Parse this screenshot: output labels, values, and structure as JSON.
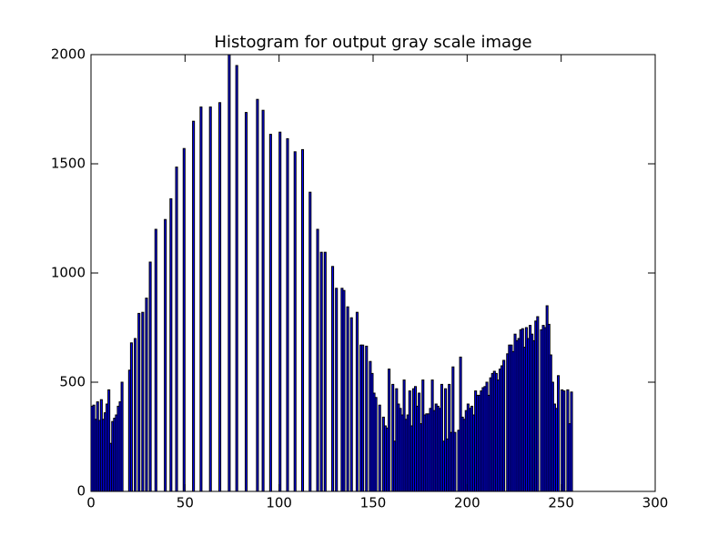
{
  "chart_data": {
    "type": "histogram",
    "title": "Histogram for output gray scale image",
    "bins": [
      0,
      1,
      2,
      3,
      4,
      5,
      6,
      7,
      8,
      9,
      10,
      11,
      12,
      13,
      14,
      15,
      16,
      17,
      18,
      19,
      20,
      21,
      22,
      23,
      24,
      25,
      26,
      27,
      28,
      29,
      30,
      31,
      32,
      33,
      34,
      35,
      36,
      37,
      38,
      39,
      40,
      41,
      42,
      43,
      44,
      45,
      46,
      47,
      48,
      49,
      50,
      51,
      52,
      53,
      54,
      55,
      56,
      57,
      58,
      59,
      60,
      61,
      62,
      63,
      64,
      65,
      66,
      67,
      68,
      69,
      70,
      71,
      72,
      73,
      74,
      75,
      76,
      77,
      78,
      79,
      80,
      81,
      82,
      83,
      84,
      85,
      86,
      87,
      88,
      89,
      90,
      91,
      92,
      93,
      94,
      95,
      96,
      97,
      98,
      99,
      100,
      101,
      102,
      103,
      104,
      105,
      106,
      107,
      108,
      109,
      110,
      111,
      112,
      113,
      114,
      115,
      116,
      117,
      118,
      119,
      120,
      121,
      122,
      123,
      124,
      125,
      126,
      127,
      128,
      129,
      130,
      131,
      132,
      133,
      134,
      135,
      136,
      137,
      138,
      139,
      140,
      141,
      142,
      143,
      144,
      145,
      146,
      147,
      148,
      149,
      150,
      151,
      152,
      153,
      154,
      155,
      156,
      157,
      158,
      159,
      160,
      161,
      162,
      163,
      164,
      165,
      166,
      167,
      168,
      169,
      170,
      171,
      172,
      173,
      174,
      175,
      176,
      177,
      178,
      179,
      180,
      181,
      182,
      183,
      184,
      185,
      186,
      187,
      188,
      189,
      190,
      191,
      192,
      193,
      194,
      195,
      196,
      197,
      198,
      199,
      200,
      201,
      202,
      203,
      204,
      205,
      206,
      207,
      208,
      209,
      210,
      211,
      212,
      213,
      214,
      215,
      216,
      217,
      218,
      219,
      220,
      221,
      222,
      223,
      224,
      225,
      226,
      227,
      228,
      229,
      230,
      231,
      232,
      233,
      234,
      235,
      236,
      237,
      238,
      239,
      240,
      241,
      242,
      243,
      244,
      245,
      246,
      247,
      248,
      249,
      250,
      251,
      252,
      253,
      254,
      255,
      256
    ],
    "values": [
      390,
      395,
      330,
      410,
      325,
      420,
      330,
      360,
      400,
      465,
      220,
      320,
      335,
      350,
      390,
      410,
      500,
      0,
      0,
      0,
      555,
      680,
      0,
      700,
      0,
      815,
      0,
      820,
      0,
      885,
      0,
      1050,
      0,
      0,
      1200,
      0,
      0,
      0,
      0,
      1245,
      0,
      0,
      1340,
      0,
      0,
      1485,
      0,
      0,
      0,
      1570,
      0,
      0,
      0,
      0,
      1695,
      0,
      0,
      0,
      1760,
      0,
      0,
      0,
      0,
      1760,
      0,
      0,
      0,
      0,
      1780,
      0,
      0,
      0,
      0,
      2000,
      0,
      0,
      0,
      1950,
      0,
      0,
      0,
      0,
      1735,
      0,
      0,
      0,
      0,
      0,
      1795,
      0,
      0,
      1745,
      0,
      0,
      0,
      1635,
      0,
      0,
      0,
      0,
      1645,
      0,
      0,
      0,
      1615,
      0,
      0,
      0,
      1555,
      0,
      0,
      0,
      1565,
      0,
      0,
      0,
      1370,
      0,
      0,
      0,
      1200,
      0,
      1095,
      0,
      1095,
      0,
      0,
      0,
      1030,
      0,
      930,
      0,
      0,
      930,
      920,
      0,
      845,
      0,
      795,
      0,
      0,
      820,
      0,
      670,
      670,
      0,
      665,
      0,
      595,
      540,
      450,
      430,
      0,
      395,
      0,
      340,
      300,
      290,
      560,
      0,
      490,
      230,
      470,
      400,
      380,
      350,
      510,
      330,
      350,
      460,
      300,
      470,
      480,
      390,
      450,
      310,
      510,
      350,
      355,
      355,
      380,
      510,
      370,
      400,
      390,
      380,
      490,
      230,
      470,
      240,
      490,
      270,
      570,
      270,
      0,
      280,
      615,
      340,
      330,
      370,
      400,
      380,
      390,
      350,
      460,
      440,
      440,
      460,
      475,
      480,
      500,
      440,
      520,
      540,
      550,
      540,
      510,
      560,
      575,
      600,
      0,
      630,
      670,
      670,
      640,
      720,
      690,
      700,
      740,
      745,
      660,
      750,
      700,
      760,
      720,
      690,
      780,
      800,
      0,
      740,
      760,
      750,
      850,
      765,
      625,
      500,
      400,
      380,
      530,
      0,
      465,
      460,
      0,
      465,
      310,
      455
    ],
    "color": "#0000ff",
    "edgecolor": "#000000",
    "xlim": [
      0,
      300
    ],
    "xticks": [
      0,
      50,
      100,
      150,
      200,
      250,
      300
    ],
    "ylim": [
      0,
      2000
    ],
    "yticks": [
      0,
      500,
      1000,
      1500,
      2000
    ]
  }
}
